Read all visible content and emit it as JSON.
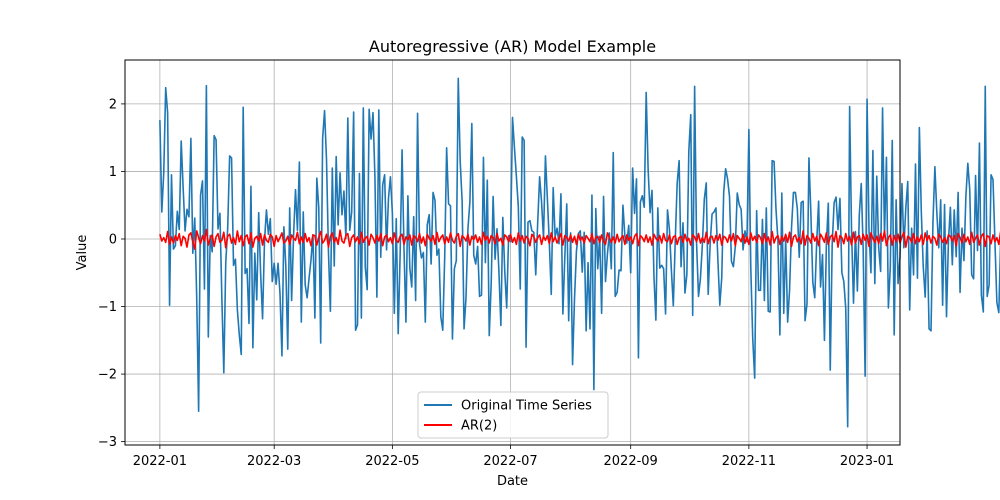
{
  "chart_data": {
    "type": "line",
    "title": "Autoregressive (AR) Model Example",
    "xlabel": "Date",
    "ylabel": "Value",
    "xlim": [
      "2021-12-14",
      "2023-01-18"
    ],
    "ylim": [
      -3.05,
      2.65
    ],
    "x_ticks": [
      "2022-01-01",
      "2022-03-01",
      "2022-05-01",
      "2022-07-01",
      "2022-09-01",
      "2022-11-01",
      "2023-01-01"
    ],
    "x_tick_labels": [
      "2022-01",
      "2022-03",
      "2022-05",
      "2022-07",
      "2022-09",
      "2022-11",
      "2023-01"
    ],
    "y_ticks": [
      -3,
      -2,
      -1,
      0,
      1,
      2
    ],
    "y_tick_labels": [
      "−3",
      "−2",
      "−1",
      "0",
      "1",
      "2"
    ],
    "grid": true,
    "legend_position": "lower-center",
    "x_start": "2022-01-01",
    "x_step_days": 1,
    "series": [
      {
        "name": "Original Time Series",
        "color": "#1f77b4",
        "values": [
          1.76,
          0.4,
          0.98,
          2.24,
          1.87,
          -0.98,
          0.95,
          -0.15,
          -0.1,
          0.41,
          0.14,
          1.45,
          0.76,
          0.12,
          0.44,
          0.33,
          1.49,
          -0.21,
          0.31,
          -0.85,
          -2.55,
          0.65,
          0.86,
          -0.74,
          2.27,
          -1.45,
          0.05,
          -0.19,
          1.53,
          1.47,
          0.15,
          0.38,
          -0.89,
          -1.98,
          -0.35,
          0.16,
          1.23,
          1.2,
          -0.39,
          -0.3,
          -1.05,
          -1.42,
          -1.71,
          1.95,
          -0.51,
          -0.44,
          -1.25,
          0.78,
          -1.61,
          -0.21,
          -0.9,
          0.39,
          -0.51,
          -1.18,
          -0.03,
          0.43,
          0.07,
          0.3,
          -0.63,
          -0.36,
          -0.67,
          -0.36,
          -0.81,
          -1.73,
          0.18,
          -0.4,
          -1.63,
          0.46,
          -0.91,
          0.05,
          0.73,
          0.13,
          1.14,
          -1.23,
          0.4,
          -0.68,
          -0.87,
          -0.58,
          -0.31,
          0.06,
          -1.17,
          0.9,
          0.47,
          -1.54,
          1.49,
          1.9,
          1.18,
          -0.18,
          -1.07,
          1.05,
          -0.4,
          1.22,
          0.21,
          0.98,
          0.36,
          0.71,
          0.01,
          1.79,
          0.13,
          0.4,
          1.88,
          -1.35,
          -1.27,
          0.97,
          -1.17,
          1.94,
          -0.41,
          -0.75,
          1.92,
          1.48,
          1.87,
          0.91,
          -0.86,
          1.91,
          -0.27,
          0.8,
          0.95,
          -0.16,
          0.61,
          0.92,
          0.38,
          -1.1,
          0.3,
          -1.4,
          -0.23,
          1.32,
          -0.15,
          -1.23,
          0.64,
          -0.43,
          -0.71,
          0.33,
          -0.91,
          1.86,
          -0.07,
          -0.28,
          -0.2,
          -1.23,
          0.21,
          0.36,
          -0.37,
          0.69,
          0.57,
          -0.24,
          -0.15,
          -1.15,
          -1.35,
          -0.28,
          1.35,
          0.52,
          0.49,
          -1.48,
          -0.44,
          -0.32,
          2.38,
          1.15,
          0.56,
          -1.33,
          -0.87,
          0.15,
          0.55,
          1.71,
          -0.24,
          -0.37,
          -0.11,
          -0.85,
          -0.83,
          1.21,
          -0.35,
          0.87,
          -1.43,
          -0.66,
          0.63,
          -0.3,
          0.15,
          -0.49,
          -1.28,
          0.32,
          -0.48,
          -1.02,
          0.05,
          -0.04,
          1.8,
          1.35,
          0.93,
          0.48,
          -0.74,
          1.51,
          1.46,
          -1.6,
          0.25,
          0.27,
          0.12,
          0.1,
          -0.53,
          0.24,
          0.92,
          0.55,
          0.01,
          1.23,
          0.59,
          -0.05,
          -0.82,
          0.76,
          0.03,
          0.16,
          -0.07,
          0.67,
          -1.11,
          -0.27,
          0.52,
          -1.21,
          0.09,
          -1.86,
          -0.89,
          -0.18,
          0.08,
          0.12,
          -0.49,
          0.1,
          -1.36,
          -0.35,
          -1.33,
          0.65,
          -2.23,
          0.45,
          -0.44,
          0.04,
          -1.1,
          0.63,
          -0.63,
          -0.22,
          0.09,
          -0.44,
          1.28,
          -0.85,
          -0.79,
          -0.46,
          -0.47,
          0.5,
          0.04,
          -0.06,
          0.2,
          -0.5,
          1.05,
          0.38,
          0.89,
          -1.76,
          0.55,
          0.64,
          0.47,
          2.17,
          1.03,
          0.39,
          0.72,
          -0.55,
          -1.2,
          0.46,
          -0.43,
          -0.39,
          -0.44,
          -1.11,
          0.43,
          0.14,
          -0.46,
          -0.99,
          -0.02,
          0.83,
          1.16,
          -0.41,
          0.24,
          -0.8,
          -0.52,
          1.3,
          1.84,
          -1.13,
          2.26,
          -0.06,
          -0.85,
          -0.58,
          -0.08,
          0.59,
          0.83,
          -0.82,
          -0.08,
          0.37,
          0.4,
          0.46,
          -0.31,
          -0.98,
          -0.57,
          0.69,
          1.04,
          0.89,
          0.63,
          -0.33,
          -0.41,
          -0.11,
          0.68,
          0.51,
          0.44,
          -0.16,
          0.12,
          -0.04,
          1.62,
          -0.44,
          -1.48,
          -2.06,
          0.42,
          -0.76,
          -0.76,
          0.29,
          -0.91,
          0.46,
          -1.07,
          -1.08,
          1.16,
          1.15,
          0.44,
          -0.02,
          -1.42,
          0.68,
          -1.1,
          0.01,
          -1.23,
          -0.76,
          0.16,
          0.69,
          0.69,
          0.45,
          -0.27,
          0.54,
          0.56,
          -1.21,
          -0.96,
          1.2,
          0.38,
          -0.64,
          -0.87,
          -0.05,
          0.56,
          -0.71,
          -0.23,
          -1.5,
          -0.09,
          0.53,
          -1.94,
          -0.08,
          0.54,
          0.62,
          0.14,
          0.6,
          -0.5,
          -0.63,
          -1.03,
          -2.78,
          1.96,
          0.11,
          -0.95,
          0.11,
          -0.77,
          0.36,
          0.82,
          -0.16,
          -2.03,
          2.07,
          0.13,
          -0.5,
          1.31,
          -0.66,
          0.93,
          -0.13,
          -0.48,
          1.94,
          0.03,
          1.21,
          -1.02,
          -0.41,
          1.46,
          -1.42,
          0.58,
          -0.66,
          -0.27,
          0.82,
          -0.13,
          0.46,
          0.85,
          -1.05,
          0.16,
          -0.53,
          1.11,
          -0.58,
          1.65,
          0.4,
          -0.41,
          -0.86,
          0.12,
          -1.33,
          -1.36,
          0.24,
          1.07,
          0.4,
          -0.13,
          0.58,
          -0.98,
          0.51,
          -1.15,
          -0.03,
          0.47,
          -0.38,
          0.43,
          -0.26,
          0.69,
          -0.79,
          0.16,
          -0.32,
          0.63,
          1.12,
          0.73,
          -0.53,
          -0.59,
          0.94,
          -0.17,
          1.42,
          -0.83,
          -1.08,
          2.26,
          -0.85,
          -0.68,
          0.95,
          0.88,
          -0.04,
          -0.94,
          -1.09,
          0.03,
          -0.11,
          -0.8,
          -2.66,
          0.59,
          0.76,
          -1.75,
          0.57,
          0.04,
          0.11,
          1.66,
          1.22,
          0.53,
          -0.43,
          -0.41,
          -0.5,
          -1.24,
          -0.57,
          -0.16,
          0.13,
          0.59,
          0.57,
          0.18,
          -0.87,
          -1.43,
          1.36,
          -0.49,
          -0.69,
          -0.65,
          -0.57,
          -0.85,
          -0.51,
          -1.84,
          -0.48,
          0.53,
          0.64,
          0.69,
          0.06,
          -0.08,
          0.38,
          0.93,
          0.1,
          -0.32,
          0.02
        ]
      },
      {
        "name": "AR(2)",
        "color": "#ff0000",
        "values": [
          0.07,
          -0.03,
          0.02,
          -0.05,
          0.11,
          -0.08,
          0.03,
          -0.06,
          0.05,
          -0.02,
          0.08,
          -0.1,
          0.04,
          0.01,
          -0.12,
          0.06,
          0.09,
          -0.04,
          -0.15,
          0.12,
          0.02,
          -0.07,
          0.05,
          -0.03,
          0.14,
          -0.09,
          0.01,
          0.06,
          -0.11,
          0.03,
          0.08,
          -0.05,
          -0.02,
          0.1,
          -0.13,
          0.04,
          0.07,
          -0.06,
          0.02,
          -0.08,
          0.12,
          -0.04,
          0.05,
          -0.1,
          0.03,
          0.06,
          -0.07,
          0.09,
          -0.12,
          0.01,
          0.04,
          -0.03,
          0.08,
          -0.09,
          0.06,
          -0.02,
          -0.05,
          0.07,
          0.03,
          -0.11,
          0.05,
          -0.04,
          0.02,
          0.09,
          -0.06,
          -0.03,
          0.04,
          -0.08,
          0.06,
          0.01,
          -0.02,
          0.1,
          -0.07,
          0.03,
          -0.05,
          0.08,
          -0.04,
          0.02,
          -0.1,
          0.06,
          0.05,
          -0.09,
          0.03,
          0.11,
          -0.06,
          -0.02,
          0.07,
          -0.12,
          0.04,
          0.09,
          -0.05,
          0.02,
          -0.08,
          0.13,
          -0.03,
          -0.06,
          0.05,
          0.08,
          -0.11,
          0.02,
          0.06,
          -0.04,
          0.03,
          -0.07,
          0.1,
          -0.05,
          0.01,
          0.04,
          -0.09,
          0.07,
          0.02,
          -0.06,
          0.05,
          -0.03,
          0.08,
          -0.1,
          0.03,
          0.06,
          -0.04,
          0.02,
          -0.07,
          0.09,
          -0.02,
          -0.05,
          0.04,
          0.07,
          -0.08,
          0.03,
          -0.01,
          0.06,
          -0.09,
          0.05,
          0.02,
          -0.04,
          0.08,
          -0.06,
          0.03,
          -0.1,
          0.07,
          0.01,
          -0.03,
          0.05,
          -0.08,
          0.1,
          -0.04,
          0.02,
          0.06,
          -0.07,
          0.03,
          -0.05,
          0.09,
          -0.02,
          -0.06,
          0.04,
          0.08,
          -0.11,
          0.05,
          0.02,
          -0.03,
          0.07,
          -0.09,
          0.04,
          -0.01,
          0.06,
          -0.05,
          0.03,
          -0.08,
          0.1,
          -0.02,
          0.04,
          -0.06,
          0.05,
          0.02,
          -0.07,
          0.08,
          -0.03,
          0.01,
          -0.09,
          0.06,
          0.03,
          -0.04,
          0.07,
          -0.05,
          0.02,
          -0.08,
          0.09,
          -0.03,
          0.05,
          -0.06,
          0.04,
          0.01,
          -0.1,
          0.07,
          0.03,
          -0.05,
          0.02,
          0.06,
          -0.08,
          0.04,
          -0.02,
          0.05,
          -0.07,
          0.09,
          -0.04,
          0.03,
          -0.06,
          0.01,
          0.08,
          -0.09,
          0.05,
          0.02,
          -0.03,
          0.06,
          -0.05,
          0.04,
          -0.08,
          0.07,
          -0.02,
          0.03,
          -0.06,
          0.05,
          0.01,
          -0.04,
          0.08,
          -0.07,
          0.02,
          0.04,
          -0.05,
          0.06,
          -0.03,
          -0.08,
          0.09,
          0.02,
          -0.05,
          0.03,
          -0.06,
          0.07,
          -0.04,
          0.01,
          0.05,
          -0.08,
          0.06,
          -0.02,
          0.03,
          -0.07,
          0.04,
          0.08,
          -0.1,
          0.05,
          0.02,
          -0.04,
          0.06,
          -0.05,
          0.03,
          -0.09,
          0.07,
          0.01,
          -0.03,
          0.05,
          -0.06,
          0.08,
          -0.02,
          -0.04,
          0.06,
          -0.07,
          0.03,
          0.05,
          -0.08,
          0.02,
          0.04,
          -0.05,
          0.07,
          -0.03,
          0.01,
          -0.09,
          0.06,
          0.03,
          -0.04,
          0.08,
          -0.06,
          0.02,
          -0.05,
          0.1,
          -0.07,
          0.03,
          0.04,
          -0.06,
          0.05,
          -0.02,
          0.07,
          -0.09,
          0.04,
          0.02,
          -0.05,
          0.06,
          -0.03,
          0.08,
          -0.1,
          0.05,
          0.01,
          -0.04,
          0.07,
          -0.06,
          0.03,
          -0.08,
          0.09,
          -0.02,
          0.04,
          -0.05,
          0.06,
          0.02,
          -0.07,
          0.08,
          -0.04,
          0.03,
          -0.09,
          0.11,
          -0.06,
          0.02,
          0.05,
          -0.08,
          0.04,
          -0.03,
          0.07,
          -0.05,
          0.1,
          -0.11,
          0.03,
          0.06,
          -0.04,
          0.02,
          -0.07,
          0.12,
          -0.09,
          0.05,
          0.01,
          -0.06,
          0.08,
          -0.03,
          0.04,
          -0.1,
          0.07,
          0.02,
          -0.05,
          0.09,
          -0.08,
          0.03,
          0.06,
          -0.04,
          0.11,
          -0.12,
          0.05,
          0.02,
          -0.07,
          0.08,
          -0.03,
          0.04,
          -0.09,
          0.1,
          -0.06,
          0.03,
          0.05,
          -0.08,
          0.07,
          -0.02,
          0.06,
          -0.11,
          0.09,
          0.01,
          -0.05,
          0.04,
          -0.07,
          0.08,
          -0.03,
          0.12,
          -0.1,
          0.02,
          0.06,
          -0.09,
          0.05,
          -0.04,
          0.07,
          -0.06,
          0.03,
          0.1,
          -0.12,
          0.04,
          0.02,
          -0.05,
          0.08,
          -0.07,
          0.03,
          -0.04,
          0.06,
          -0.08,
          0.09,
          -0.02,
          0.05,
          -0.06,
          0.04,
          0.01,
          -0.09,
          0.07,
          0.03,
          -0.05,
          0.02,
          -0.07,
          0.06,
          0.04,
          -0.03,
          0.05,
          -0.1,
          0.08,
          0.02,
          -0.06,
          0.07,
          -0.04,
          0.03,
          -0.08,
          0.1,
          -0.05,
          0.01,
          0.06,
          -0.09,
          0.04,
          0.08,
          -0.11,
          0.05,
          0.03,
          -0.07,
          0.06,
          -0.04,
          0.02,
          -0.08,
          0.12,
          -0.06,
          0.03,
          0.05,
          -0.09,
          0.04,
          -0.02,
          0.07,
          -0.05,
          0.09,
          -0.1,
          0.03,
          0.06,
          -0.04,
          0.02,
          -0.07,
          0.08,
          -0.03,
          0.05,
          -0.06,
          0.04,
          0.02,
          -0.05,
          0.03,
          0.01,
          -0.02,
          0.04
        ]
      }
    ]
  }
}
